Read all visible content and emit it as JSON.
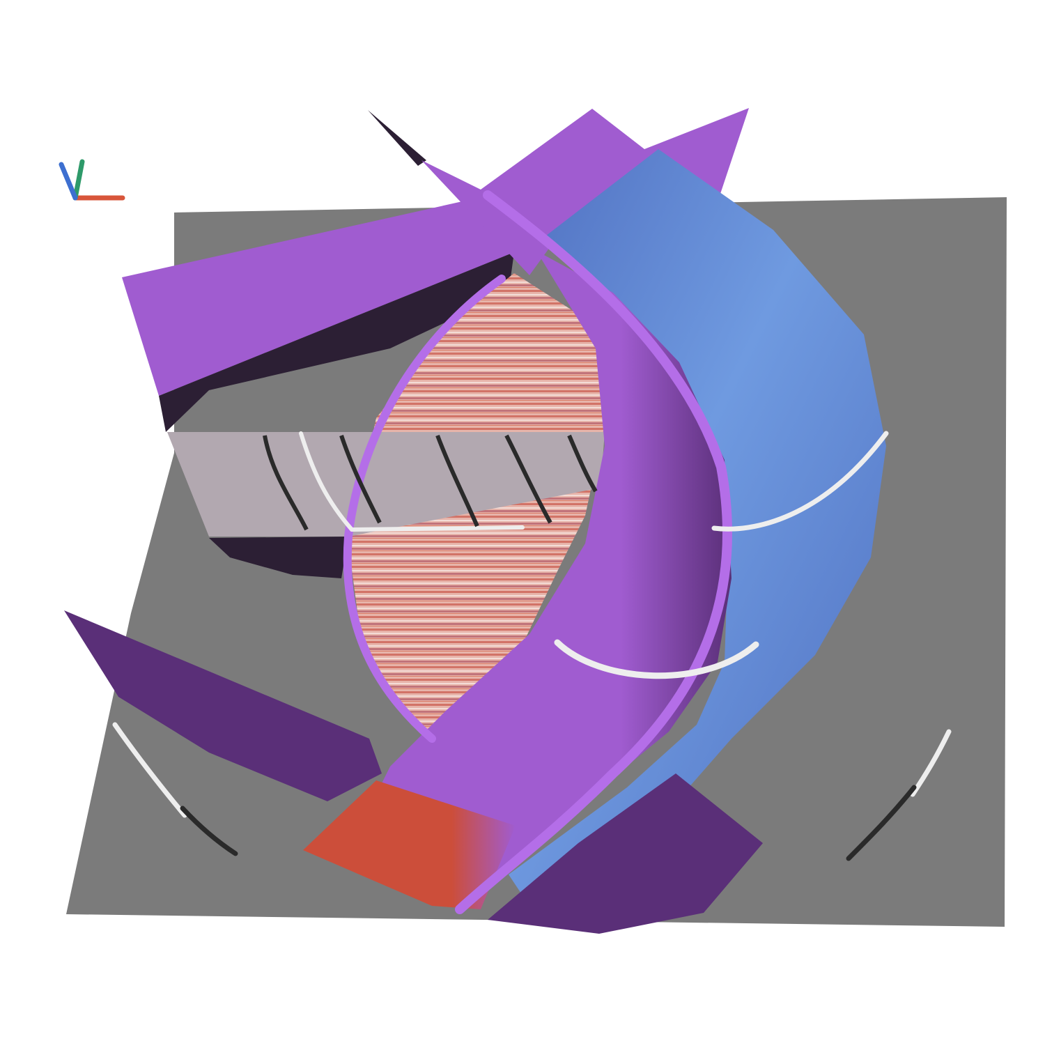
{
  "scene": {
    "kind": "3d-render",
    "background_color": "#ffffff",
    "floor_color": "#7b7b7b",
    "surface_colors": {
      "purple": "#a05cd0",
      "purple_dark": "#5a2f78",
      "blue": "#4f6fc0",
      "blue_light": "#6f9ae0",
      "red": "#cc4e3a",
      "shadow": "#2c1f34",
      "gray_panel": "#b2a8b0"
    },
    "tube_colors": {
      "purple": "#b46ee8",
      "white": "#eeeeee",
      "black": "#2a2a2a"
    },
    "axes_gizmo": {
      "x_color": "#d8553a",
      "y_color": "#2e9a6a",
      "z_color": "#3d6fd0"
    }
  }
}
